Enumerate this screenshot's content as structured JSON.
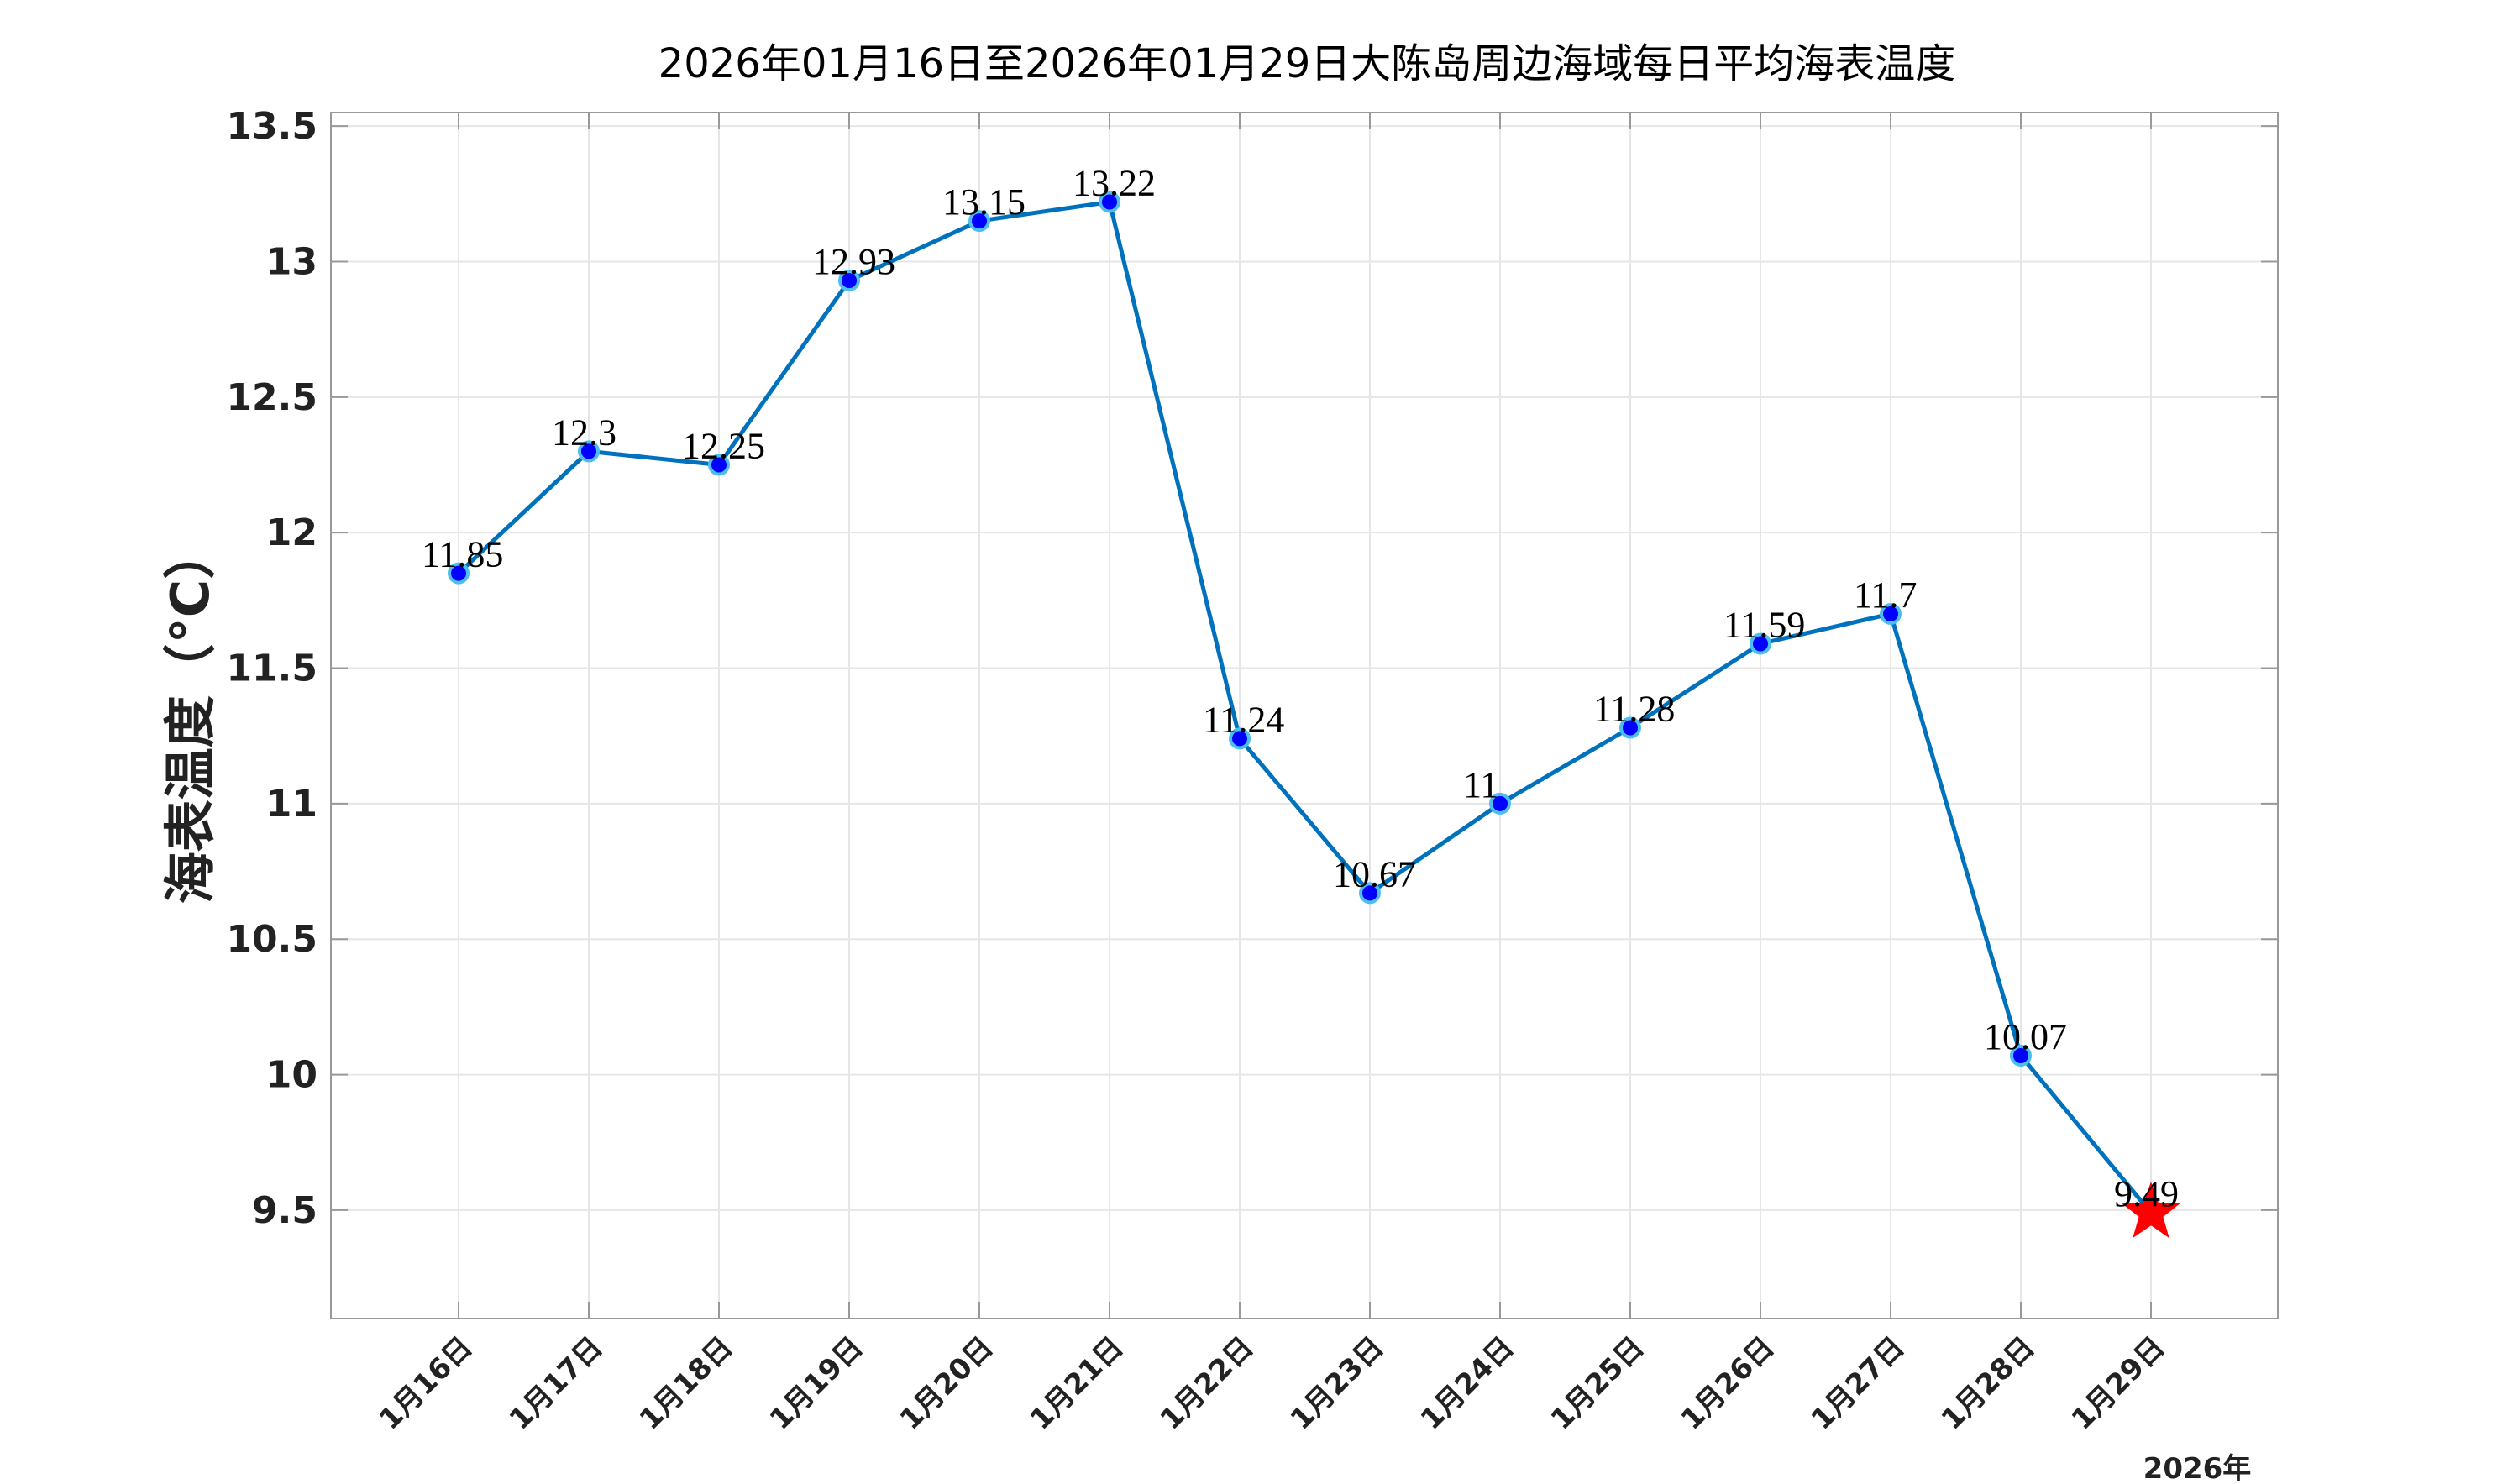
{
  "chart_data": {
    "type": "line",
    "title": "2026年01月16日至2026年01月29日大陈岛周边海域每日平均海表温度",
    "ylabel": "海表温度（°C）",
    "year_label": "2026年",
    "categories": [
      "1月16日",
      "1月17日",
      "1月18日",
      "1月19日",
      "1月20日",
      "1月21日",
      "1月22日",
      "1月23日",
      "1月24日",
      "1月25日",
      "1月26日",
      "1月27日",
      "1月28日",
      "1月29日"
    ],
    "series": [
      {
        "values": [
          11.85,
          12.3,
          12.25,
          12.93,
          13.15,
          13.22,
          11.24,
          10.67,
          11,
          11.28,
          11.59,
          11.7,
          10.07,
          9.49
        ],
        "labels": [
          "11.85",
          "12.3",
          "12.25",
          "12.93",
          "13.15",
          "13.22",
          "11.24",
          "10.67",
          "11",
          "11.28",
          "11.59",
          "11.7",
          "10.07",
          "9.49"
        ]
      }
    ],
    "ylim": [
      9.1,
      13.55
    ],
    "yticks": [
      "9.5",
      "10",
      "10.5",
      "11",
      "11.5",
      "12",
      "12.5",
      "13",
      "13.5"
    ],
    "grid": true,
    "colors": {
      "line": "#0072BD",
      "marker_fill": "#0000FF",
      "marker_edge": "#4DBEEE",
      "last_marker": "#FF0000",
      "axes": "#999999",
      "grid": "#E6E6E6"
    },
    "last_marker_shape": "star"
  }
}
